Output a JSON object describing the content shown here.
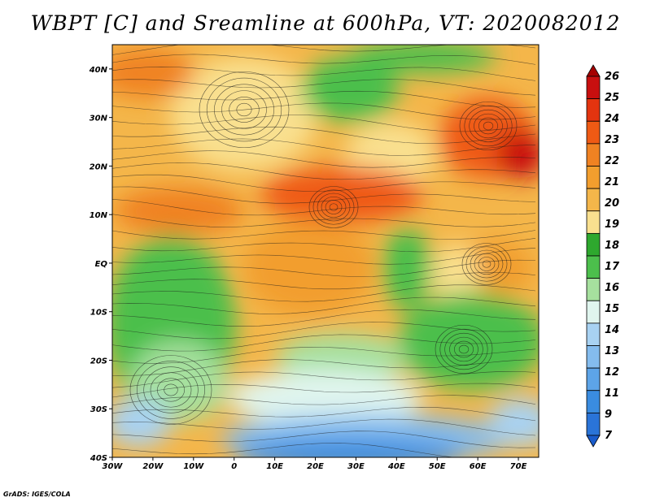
{
  "title": "WBPT [C] and Sreamline at 600hPa, VT: 2020082012",
  "credit": "GrADS: IGES/COLA",
  "map": {
    "lon_labels": [
      "30W",
      "20W",
      "10W",
      "0",
      "10E",
      "20E",
      "30E",
      "40E",
      "50E",
      "60E",
      "70E"
    ],
    "lon_values": [
      -30,
      -20,
      -10,
      0,
      10,
      20,
      30,
      40,
      50,
      60,
      70
    ],
    "lat_labels": [
      "40N",
      "30N",
      "20N",
      "10N",
      "EQ",
      "10S",
      "20S",
      "30S",
      "40S"
    ],
    "lat_values": [
      40,
      30,
      20,
      10,
      0,
      -10,
      -20,
      -30,
      -40
    ],
    "lon_range": [
      -30,
      75
    ],
    "lat_range": [
      -40,
      45
    ],
    "field": "WBPT [C]",
    "overlay": "streamlines at 600hPa"
  },
  "colorbar": {
    "labels": [
      "26",
      "25",
      "24",
      "23",
      "22",
      "21",
      "20",
      "19",
      "18",
      "17",
      "16",
      "15",
      "14",
      "13",
      "12",
      "11",
      "9",
      "7"
    ],
    "colors": [
      "#a50000",
      "#c80f0f",
      "#e3340f",
      "#ef5a14",
      "#f08222",
      "#f29e2e",
      "#f4b64a",
      "#f9e08f",
      "#2ea82e",
      "#4cbf4c",
      "#a6e09e",
      "#e0f5ee",
      "#a8d2f2",
      "#84bcee",
      "#5da4e8",
      "#3a8ce0",
      "#2a74d8",
      "#1a5ccc"
    ]
  }
}
